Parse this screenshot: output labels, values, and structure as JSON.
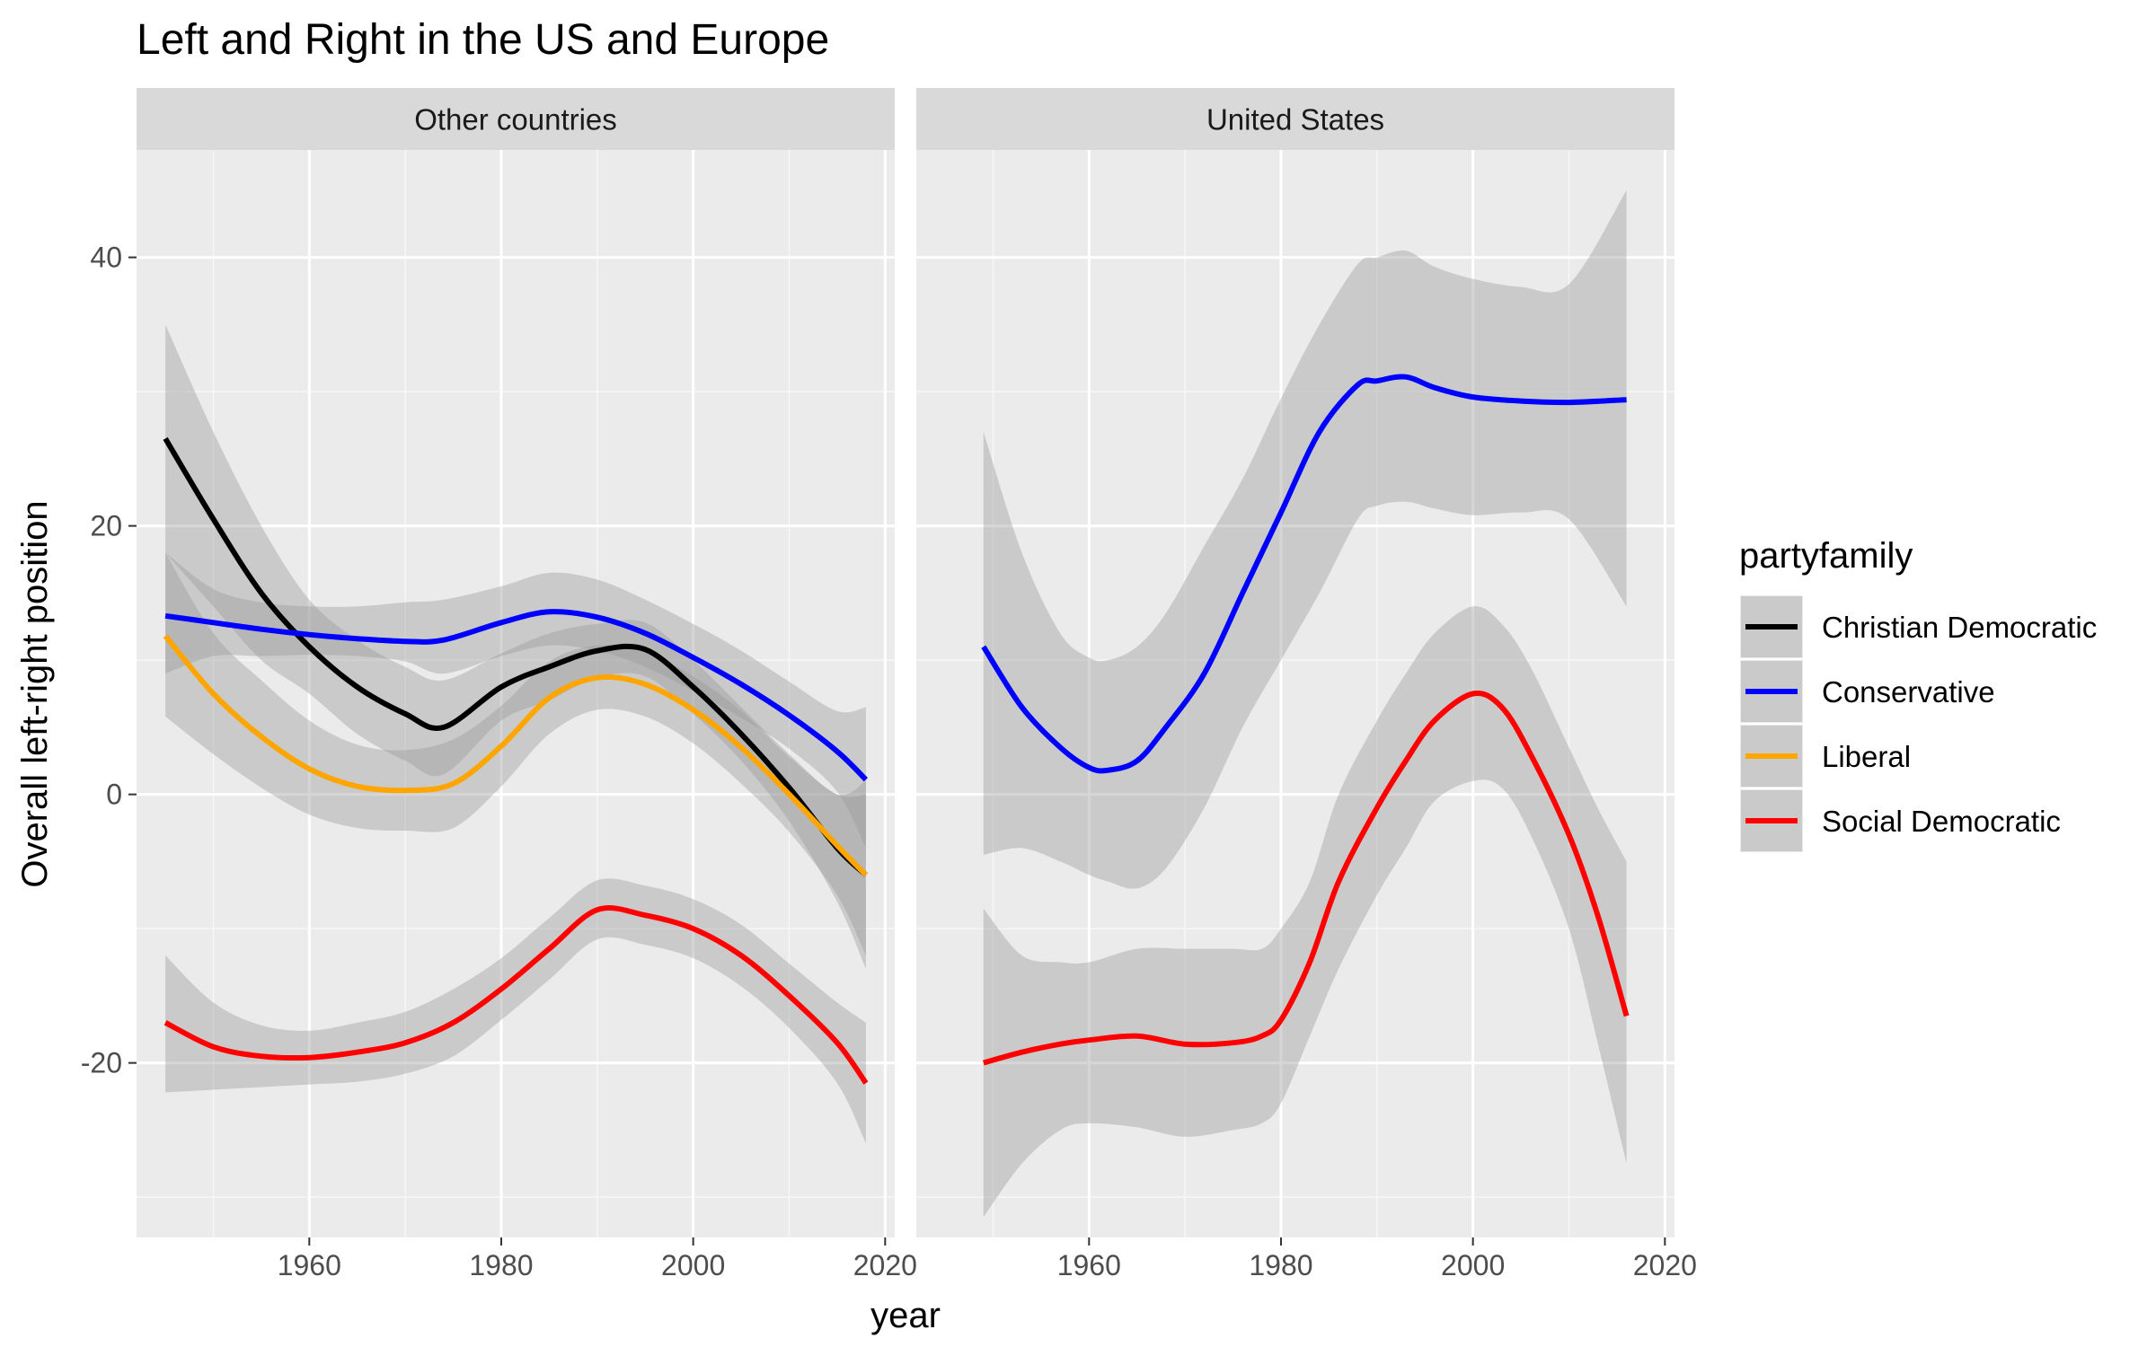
{
  "chart_data": {
    "type": "line",
    "title": "Left and Right in the US and Europe",
    "xlabel": "year",
    "ylabel": "Overall left-right position",
    "xlim": [
      1942,
      2021
    ],
    "ylim": [
      -33,
      48
    ],
    "x_ticks": [
      1960,
      1980,
      2000,
      2020
    ],
    "y_ticks": [
      -20,
      0,
      20,
      40
    ],
    "grid": true,
    "legend": {
      "title": "partyfamily",
      "position": "right",
      "entries": [
        {
          "name": "Christian Democratic",
          "color": "#000000"
        },
        {
          "name": "Conservative",
          "color": "#0000ff"
        },
        {
          "name": "Liberal",
          "color": "#ffa500"
        },
        {
          "name": "Social Democratic",
          "color": "#ff0000"
        }
      ]
    },
    "panels": [
      {
        "label": "Other countries",
        "series": [
          {
            "name": "Christian Democratic",
            "color": "#000000",
            "x": [
              1945,
              1950,
              1955,
              1960,
              1965,
              1970,
              1974,
              1980,
              1985,
              1990,
              1995,
              2000,
              2005,
              2010,
              2015,
              2018
            ],
            "y": [
              26.5,
              20.5,
              15,
              11,
              8,
              6,
              5,
              8,
              9.5,
              10.7,
              10.8,
              8,
              4.5,
              0.5,
              -4,
              -6
            ],
            "lower": [
              18,
              14,
              10,
              7.5,
              4.5,
              2.5,
              1.5,
              5.5,
              7,
              8.7,
              8.8,
              6,
              2.5,
              -2,
              -8,
              -13
            ],
            "upper": [
              35,
              27,
              20,
              14.5,
              11.5,
              9.5,
              8.5,
              10.5,
              12,
              12.7,
              12.8,
              10,
              6.5,
              3,
              0,
              1
            ]
          },
          {
            "name": "Conservative",
            "color": "#0000ff",
            "x": [
              1945,
              1950,
              1955,
              1960,
              1965,
              1970,
              1974,
              1980,
              1985,
              1990,
              1995,
              2000,
              2005,
              2010,
              2015,
              2018
            ],
            "y": [
              13.3,
              12.8,
              12.3,
              11.9,
              11.6,
              11.4,
              11.5,
              12.8,
              13.6,
              13.2,
              12.0,
              10.2,
              8.2,
              5.9,
              3.2,
              1.1
            ],
            "lower": [
              9,
              10.3,
              10.3,
              10.4,
              10.3,
              9.9,
              9,
              10.3,
              11.1,
              10.7,
              9.5,
              7.7,
              5.7,
              3.4,
              0.2,
              -4
            ],
            "upper": [
              18,
              15.3,
              14.3,
              14,
              14,
              14.3,
              14.5,
              15.5,
              16.5,
              16,
              14.5,
              12.7,
              10.7,
              8.4,
              6.2,
              6.5
            ]
          },
          {
            "name": "Liberal",
            "color": "#ffa500",
            "x": [
              1945,
              1950,
              1955,
              1960,
              1965,
              1970,
              1975,
              1980,
              1985,
              1990,
              1995,
              2000,
              2005,
              2010,
              2015,
              2018
            ],
            "y": [
              11.8,
              7.5,
              4.3,
              1.9,
              0.6,
              0.3,
              0.8,
              3.6,
              7.2,
              8.7,
              8.2,
              6.3,
              3.5,
              0,
              -3.8,
              -6
            ],
            "lower": [
              5.8,
              3,
              0.5,
              -1.5,
              -2.5,
              -2.7,
              -2.5,
              0.6,
              4.5,
              6.3,
              5.8,
              3.8,
              0.8,
              -2.8,
              -7.5,
              -12
            ],
            "upper": [
              18,
              12,
              8.5,
              5.5,
              3.7,
              3.3,
              4.1,
              6.6,
              9.9,
              11.1,
              10.6,
              8.8,
              6.2,
              2.8,
              0,
              0
            ]
          },
          {
            "name": "Social Democratic",
            "color": "#ff0000",
            "x": [
              1945,
              1950,
              1955,
              1960,
              1965,
              1970,
              1975,
              1980,
              1985,
              1990,
              1995,
              2000,
              2005,
              2010,
              2015,
              2018
            ],
            "y": [
              -17,
              -18.8,
              -19.5,
              -19.6,
              -19.2,
              -18.5,
              -17,
              -14.5,
              -11.5,
              -8.6,
              -9,
              -10,
              -12,
              -15,
              -18.5,
              -21.5
            ],
            "lower": [
              -22.2,
              -22,
              -21.8,
              -21.6,
              -21.4,
              -20.8,
              -19.5,
              -16.8,
              -13.8,
              -10.8,
              -11.2,
              -12.2,
              -14.3,
              -17.4,
              -21.5,
              -26
            ],
            "upper": [
              -12,
              -15.5,
              -17.2,
              -17.6,
              -17,
              -16.2,
              -14.5,
              -12.2,
              -9.2,
              -6.4,
              -6.8,
              -7.8,
              -9.7,
              -12.6,
              -15.5,
              -17
            ]
          }
        ]
      },
      {
        "label": "United States",
        "series": [
          {
            "name": "Conservative",
            "color": "#0000ff",
            "x": [
              1949,
              1953,
              1957,
              1960,
              1962,
              1965,
              1968,
              1972,
              1976,
              1980,
              1984,
              1988,
              1990,
              1993,
              1996,
              2000,
              2005,
              2010,
              2016
            ],
            "y": [
              11,
              6.5,
              3.5,
              2,
              1.8,
              2.5,
              5,
              9,
              15,
              21,
              27,
              30.5,
              30.8,
              31.1,
              30.3,
              29.6,
              29.3,
              29.2,
              29.4
            ],
            "lower": [
              -4.5,
              -4,
              -5,
              -6,
              -6.5,
              -7,
              -5.5,
              -1,
              5,
              10,
              15,
              20.5,
              21.5,
              21.8,
              21.3,
              20.8,
              21,
              20.5,
              14
            ],
            "upper": [
              27,
              18,
              12,
              10.2,
              10,
              11,
              13.5,
              18.5,
              23.5,
              29.5,
              35,
              39.5,
              40,
              40.5,
              39.3,
              38.4,
              37.8,
              38,
              45
            ]
          },
          {
            "name": "Social Democratic",
            "color": "#ff0000",
            "x": [
              1949,
              1953,
              1957,
              1960,
              1965,
              1970,
              1975,
              1978,
              1980,
              1983,
              1986,
              1990,
              1993,
              1996,
              2000,
              2003,
              2006,
              2010,
              2013,
              2016
            ],
            "y": [
              -20,
              -19.2,
              -18.6,
              -18.3,
              -18,
              -18.6,
              -18.5,
              -18,
              -16.8,
              -12.5,
              -6.5,
              -1,
              2.5,
              5.5,
              7.5,
              6.5,
              3,
              -3,
              -9,
              -16.5
            ],
            "lower": [
              -31.5,
              -27.5,
              -25,
              -24.5,
              -24.8,
              -25.5,
              -25,
              -24.5,
              -23,
              -18,
              -13,
              -7.5,
              -4,
              -0.5,
              1,
              0.5,
              -3,
              -10,
              -18.5,
              -27.5
            ],
            "upper": [
              -8.5,
              -12,
              -12.5,
              -12.5,
              -11.5,
              -11.5,
              -11.5,
              -11.5,
              -10,
              -6.5,
              0,
              5.5,
              9,
              12,
              14,
              12.7,
              9.5,
              3.5,
              -1,
              -5
            ]
          }
        ]
      }
    ]
  }
}
